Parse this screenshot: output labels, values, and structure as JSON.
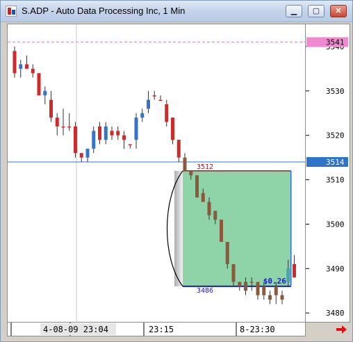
{
  "window": {
    "title": "S.ADP - Auto Data Processing Inc, 1 Min",
    "minimize_label": "▁",
    "maximize_label": "▢",
    "close_label": "✕"
  },
  "chart_data": {
    "type": "candlestick",
    "title": "S.ADP - Auto Data Processing Inc, 1 Min",
    "ylim": [
      3478,
      3545
    ],
    "y_ticks": [
      3480,
      3490,
      3500,
      3510,
      3520,
      3530,
      3540
    ],
    "x_tick_labels": [
      "4-08-09 23:04",
      "23:15",
      "8-23:30"
    ],
    "candles": [
      {
        "o": 3539,
        "h": 3540,
        "l": 3533,
        "c": 3534,
        "dir": "down"
      },
      {
        "o": 3535,
        "h": 3537,
        "l": 3533,
        "c": 3536,
        "dir": "up"
      },
      {
        "o": 3536,
        "h": 3538,
        "l": 3535,
        "c": 3535,
        "dir": "down"
      },
      {
        "o": 3535,
        "h": 3536,
        "l": 3533,
        "c": 3534,
        "dir": "down"
      },
      {
        "o": 3534,
        "h": 3534,
        "l": 3529,
        "c": 3529,
        "dir": "down"
      },
      {
        "o": 3529,
        "h": 3531,
        "l": 3527,
        "c": 3530,
        "dir": "up"
      },
      {
        "o": 3528,
        "h": 3530,
        "l": 3523,
        "c": 3524,
        "dir": "down"
      },
      {
        "o": 3524,
        "h": 3525,
        "l": 3520,
        "c": 3522,
        "dir": "down"
      },
      {
        "o": 3522,
        "h": 3526,
        "l": 3520,
        "c": 3522,
        "dir": "down"
      },
      {
        "o": 3522,
        "h": 3525,
        "l": 3521,
        "c": 3522,
        "dir": "down"
      },
      {
        "o": 3522,
        "h": 3523,
        "l": 3515,
        "c": 3516,
        "dir": "down"
      },
      {
        "o": 3516,
        "h": 3516,
        "l": 3514,
        "c": 3515,
        "dir": "down"
      },
      {
        "o": 3515,
        "h": 3517,
        "l": 3514,
        "c": 3517,
        "dir": "up"
      },
      {
        "o": 3517,
        "h": 3522,
        "l": 3516,
        "c": 3521,
        "dir": "up"
      },
      {
        "o": 3522,
        "h": 3523,
        "l": 3518,
        "c": 3519,
        "dir": "down"
      },
      {
        "o": 3519,
        "h": 3523,
        "l": 3518,
        "c": 3522,
        "dir": "up"
      },
      {
        "o": 3521,
        "h": 3522,
        "l": 3519,
        "c": 3520,
        "dir": "down"
      },
      {
        "o": 3520,
        "h": 3522,
        "l": 3519,
        "c": 3521,
        "dir": "down"
      },
      {
        "o": 3519,
        "h": 3521,
        "l": 3517,
        "c": 3520,
        "dir": "down"
      },
      {
        "o": 3518,
        "h": 3518,
        "l": 3517,
        "c": 3518,
        "dir": "down"
      },
      {
        "o": 3519,
        "h": 3525,
        "l": 3517,
        "c": 3524,
        "dir": "up"
      },
      {
        "o": 3524,
        "h": 3526,
        "l": 3523,
        "c": 3525,
        "dir": "up"
      },
      {
        "o": 3526,
        "h": 3530,
        "l": 3525,
        "c": 3528,
        "dir": "up"
      },
      {
        "o": 3529,
        "h": 3530,
        "l": 3528,
        "c": 3529,
        "dir": "down"
      },
      {
        "o": 3528,
        "h": 3529,
        "l": 3528,
        "c": 3528,
        "dir": "down"
      },
      {
        "o": 3527,
        "h": 3528,
        "l": 3522,
        "c": 3523,
        "dir": "down"
      },
      {
        "o": 3524,
        "h": 3524,
        "l": 3518,
        "c": 3519,
        "dir": "down"
      },
      {
        "o": 3519,
        "h": 3519,
        "l": 3514,
        "c": 3515,
        "dir": "down"
      },
      {
        "o": 3515,
        "h": 3516,
        "l": 3512,
        "c": 3512,
        "dir": "down"
      },
      {
        "o": 3512,
        "h": 3512,
        "l": 3510,
        "c": 3511,
        "dir": "down"
      },
      {
        "o": 3511,
        "h": 3511,
        "l": 3506,
        "c": 3506,
        "dir": "down"
      },
      {
        "o": 3507,
        "h": 3508,
        "l": 3505,
        "c": 3505,
        "dir": "down"
      },
      {
        "o": 3505,
        "h": 3506,
        "l": 3501,
        "c": 3502,
        "dir": "down"
      },
      {
        "o": 3503,
        "h": 3503,
        "l": 3500,
        "c": 3501,
        "dir": "down"
      },
      {
        "o": 3501,
        "h": 3501,
        "l": 3496,
        "c": 3496,
        "dir": "down"
      },
      {
        "o": 3496,
        "h": 3496,
        "l": 3490,
        "c": 3491,
        "dir": "down"
      },
      {
        "o": 3491,
        "h": 3491,
        "l": 3486,
        "c": 3487,
        "dir": "down"
      },
      {
        "o": 3487,
        "h": 3487,
        "l": 3485,
        "c": 3486,
        "dir": "down"
      },
      {
        "o": 3487,
        "h": 3488,
        "l": 3484,
        "c": 3485,
        "dir": "down"
      },
      {
        "o": 3487,
        "h": 3488,
        "l": 3485,
        "c": 3487,
        "dir": "down"
      },
      {
        "o": 3487,
        "h": 3487,
        "l": 3483,
        "c": 3484,
        "dir": "down"
      },
      {
        "o": 3486,
        "h": 3487,
        "l": 3483,
        "c": 3484,
        "dir": "down"
      },
      {
        "o": 3484,
        "h": 3485,
        "l": 3482,
        "c": 3483,
        "dir": "down"
      },
      {
        "o": 3486,
        "h": 3487,
        "l": 3482,
        "c": 3484,
        "dir": "down"
      },
      {
        "o": 3484,
        "h": 3485,
        "l": 3482,
        "c": 3483,
        "dir": "down"
      },
      {
        "o": 3487,
        "h": 3492,
        "l": 3486,
        "c": 3490,
        "dir": "up"
      },
      {
        "o": 3491,
        "h": 3493,
        "l": 3488,
        "c": 3488,
        "dir": "down"
      }
    ],
    "horizontal_lines": [
      {
        "label": "3541",
        "value": 3541,
        "color": "#d08ad0",
        "style": "dashed"
      },
      {
        "label": "3514",
        "value": 3514,
        "color": "#2f74c8",
        "style": "solid"
      }
    ],
    "zone": {
      "top_label": "3512",
      "top": 3512,
      "bottom_label": "3486",
      "bottom": 3486,
      "start_index": 28,
      "end_index": 45,
      "color": "#8fd3a8"
    },
    "pnl_label": "$0.26",
    "colors": {
      "up": "#3a72c8",
      "down": "#d02b2b",
      "zone_down": "#8b5a3c",
      "zone_up": "#4aa5a0"
    }
  }
}
